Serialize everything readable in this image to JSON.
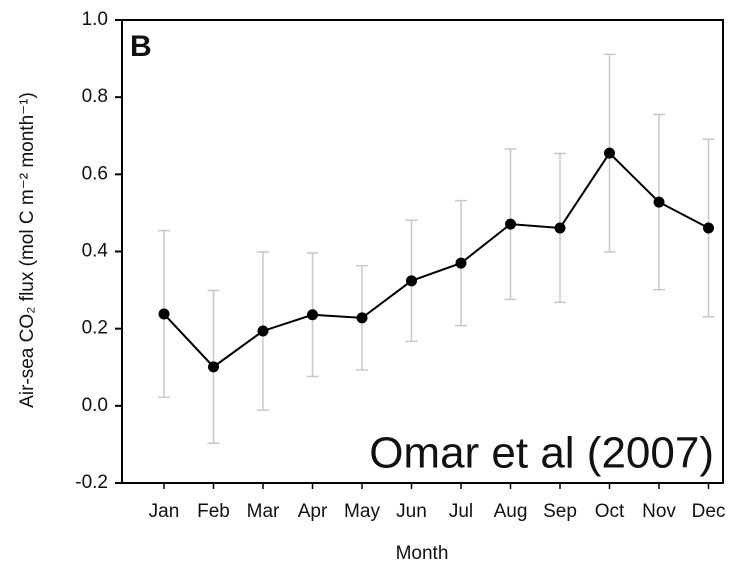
{
  "chart_data": {
    "type": "line",
    "panel_label": "B",
    "annotation": "Omar et al (2007)",
    "xlabel": "Month",
    "ylabel": "Air-sea CO₂ flux (mol C m⁻² month⁻¹)",
    "categories": [
      "Jan",
      "Feb",
      "Mar",
      "Apr",
      "May",
      "Jun",
      "Jul",
      "Aug",
      "Sep",
      "Oct",
      "Nov",
      "Dec"
    ],
    "series": [
      {
        "color": "#000000",
        "error_color": "#c8c8c8",
        "values": [
          0.238,
          0.101,
          0.194,
          0.236,
          0.228,
          0.324,
          0.37,
          0.471,
          0.461,
          0.655,
          0.528,
          0.461
        ],
        "errors": [
          0.216,
          0.198,
          0.205,
          0.16,
          0.135,
          0.157,
          0.162,
          0.195,
          0.193,
          0.256,
          0.227,
          0.23
        ]
      }
    ],
    "ylim": [
      -0.2,
      1.0
    ],
    "yticks": [
      -0.2,
      {
        "value": 0,
        "label": "0.0"
      },
      0.2,
      0.4,
      0.6,
      0.8,
      {
        "value": 1,
        "label": "1.0"
      }
    ]
  }
}
